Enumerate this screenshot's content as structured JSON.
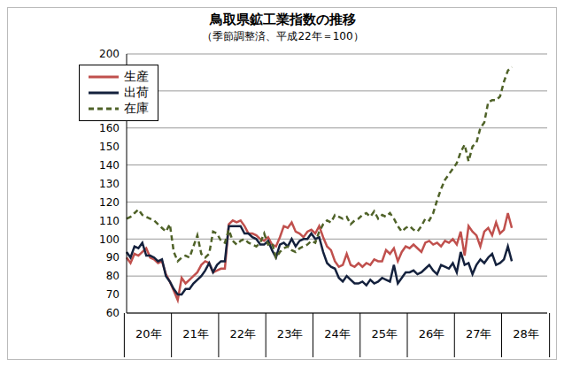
{
  "chart_data": {
    "type": "line",
    "title": "鳥取県鉱工業指数の推移",
    "subtitle": "（季節調整済、平成22年＝100）",
    "categories": [
      null,
      null,
      null,
      null,
      null,
      "20年",
      null,
      null,
      null,
      null,
      null,
      null,
      null,
      null,
      null,
      null,
      null,
      "21年",
      null,
      null,
      null,
      null,
      null,
      null,
      null,
      null,
      null,
      null,
      null,
      "22年",
      null,
      null,
      null,
      null,
      null,
      null,
      null,
      null,
      null,
      null,
      null,
      "23年",
      null,
      null,
      null,
      null,
      null,
      null,
      null,
      null,
      null,
      null,
      null,
      "24年",
      null,
      null,
      null,
      null,
      null,
      null,
      null,
      null,
      null,
      null,
      null,
      "25年",
      null,
      null,
      null,
      null,
      null,
      null,
      null,
      null,
      null,
      null,
      null,
      "26年",
      null,
      null,
      null,
      null,
      null,
      null,
      null,
      null,
      null,
      null,
      null,
      "27年",
      null,
      null,
      null,
      null,
      null,
      null,
      null,
      null,
      null,
      null,
      null,
      "28年",
      null,
      null,
      null,
      null,
      null,
      null
    ],
    "series": [
      {
        "name": "生産",
        "color": "#c0504d",
        "line_style": "solid",
        "marker": "none",
        "values": [
          90,
          87,
          92,
          91,
          93,
          95,
          90,
          89,
          87,
          88,
          81,
          77,
          72,
          67,
          79,
          76,
          78,
          80,
          82,
          86,
          88,
          87,
          82,
          83,
          84,
          84,
          108,
          110,
          109,
          110,
          107,
          103,
          103,
          102,
          100,
          99,
          101,
          97,
          96,
          101,
          107,
          106,
          109,
          104,
          103,
          101,
          104,
          105,
          103,
          107,
          101,
          96,
          94,
          88,
          85,
          86,
          92,
          86,
          85,
          87,
          85,
          87,
          86,
          89,
          88,
          88,
          94,
          92,
          95,
          88,
          93,
          96,
          95,
          97,
          95,
          93,
          98,
          99,
          97,
          98,
          96,
          99,
          98,
          100,
          97,
          104,
          91,
          107,
          104,
          102,
          96,
          104,
          106,
          102,
          109,
          103,
          105,
          114,
          106,
          null,
          null,
          null,
          null,
          null,
          null,
          null,
          null,
          null
        ]
      },
      {
        "name": "出荷",
        "color": "#14213d",
        "line_style": "solid",
        "marker": "none",
        "values": [
          93,
          90,
          96,
          95,
          98,
          91,
          91,
          90,
          88,
          89,
          80,
          77,
          73,
          70,
          70,
          73,
          73,
          76,
          78,
          80,
          83,
          87,
          82,
          86,
          88,
          88,
          107,
          107,
          107,
          107,
          103,
          103,
          101,
          100,
          97,
          97,
          99,
          94,
          90,
          97,
          98,
          96,
          100,
          96,
          99,
          100,
          100,
          103,
          100,
          101,
          93,
          87,
          85,
          84,
          79,
          77,
          80,
          78,
          76,
          76,
          77,
          75,
          78,
          76,
          77,
          79,
          78,
          77,
          86,
          76,
          79,
          82,
          82,
          83,
          81,
          82,
          84,
          86,
          83,
          81,
          86,
          85,
          84,
          87,
          82,
          93,
          86,
          87,
          81,
          86,
          89,
          87,
          90,
          92,
          86,
          87,
          89,
          96,
          88,
          null,
          null,
          null,
          null,
          null,
          null,
          null,
          null,
          null
        ]
      },
      {
        "name": "在庫",
        "color": "#4f6228",
        "line_style": "dashed",
        "marker": "none",
        "values": [
          111,
          112,
          114,
          116,
          113,
          112,
          111,
          110,
          108,
          106,
          104,
          108,
          93,
          88,
          90,
          91,
          90,
          96,
          102,
          92,
          90,
          92,
          104,
          103,
          99,
          98,
          105,
          99,
          97,
          99,
          100,
          98,
          97,
          96,
          98,
          103,
          97,
          98,
          90,
          93,
          95,
          96,
          94,
          93,
          95,
          96,
          97,
          99,
          98,
          104,
          108,
          110,
          109,
          113,
          112,
          111,
          112,
          108,
          110,
          111,
          113,
          114,
          112,
          115,
          111,
          113,
          112,
          114,
          111,
          107,
          104,
          106,
          107,
          105,
          104,
          107,
          111,
          110,
          114,
          121,
          127,
          132,
          135,
          138,
          141,
          147,
          151,
          142,
          150,
          152,
          160,
          163,
          174,
          175,
          175,
          177,
          185,
          191,
          193,
          null,
          null,
          null,
          null,
          null,
          null,
          null,
          null,
          null
        ]
      }
    ],
    "ylim": [
      60,
      200
    ],
    "yticks": [
      60,
      70,
      80,
      90,
      100,
      110,
      120,
      130,
      140,
      150,
      160,
      170,
      180,
      190,
      200
    ],
    "grid": true,
    "legend": "top-left"
  }
}
